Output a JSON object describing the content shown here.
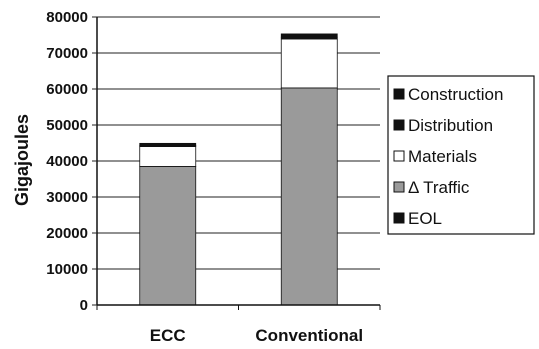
{
  "chart_data": {
    "type": "bar",
    "stacked": true,
    "title": "",
    "xlabel": "",
    "ylabel": "Gigajoules",
    "ylim": [
      0,
      80000
    ],
    "yticks": [
      0,
      10000,
      20000,
      30000,
      40000,
      50000,
      60000,
      70000,
      80000
    ],
    "categories": [
      "ECC",
      "Conventional"
    ],
    "grid": true,
    "legend": "right",
    "series": [
      {
        "name": "EOL",
        "values": [
          0,
          0
        ],
        "color": "#111111"
      },
      {
        "name": "Δ Traffic",
        "values": [
          38500,
          60300
        ],
        "color": "#9a9a9a"
      },
      {
        "name": "Materials",
        "values": [
          5500,
          13600
        ],
        "color": "#ffffff"
      },
      {
        "name": "Distribution",
        "values": [
          300,
          500
        ],
        "color": "#111111"
      },
      {
        "name": "Construction",
        "values": [
          600,
          900
        ],
        "color": "#111111"
      }
    ],
    "legend_order": [
      "Construction",
      "Distribution",
      "Materials",
      "Δ Traffic",
      "EOL"
    ]
  }
}
